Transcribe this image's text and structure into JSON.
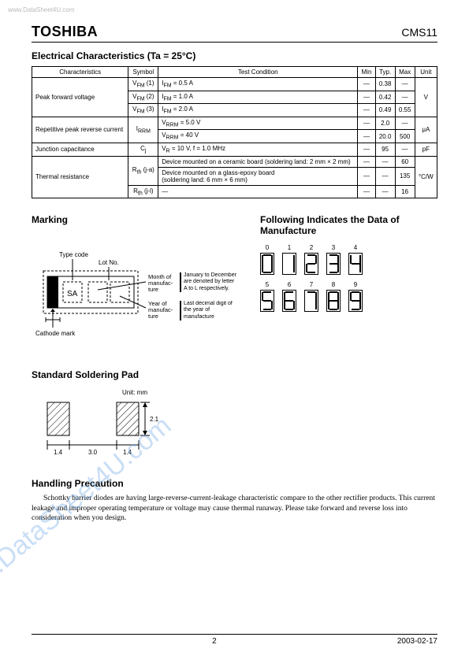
{
  "watermark_top": "www.DataSheet4U.com",
  "watermark_diag": "www.DataSheet4U.com",
  "header": {
    "logo": "TOSHIBA",
    "part": "CMS11"
  },
  "elec": {
    "title": "Electrical Characteristics (Ta = 25°C)",
    "head": [
      "Characteristics",
      "Symbol",
      "Test Condition",
      "Min",
      "Typ.",
      "Max",
      "Unit"
    ],
    "rows": [
      {
        "char": "Peak forward voltage",
        "char_rowspan": 3,
        "sym": "V_FM (1)",
        "cond": "I_FM = 0.5 A",
        "min": "—",
        "typ": "0.38",
        "max": "—",
        "unit": "V",
        "unit_rowspan": 3
      },
      {
        "sym": "V_FM (2)",
        "cond": "I_FM = 1.0 A",
        "min": "—",
        "typ": "0.42",
        "max": "—"
      },
      {
        "sym": "V_FM (3)",
        "cond": "I_FM = 2.0 A",
        "min": "—",
        "typ": "0.49",
        "max": "0.55"
      },
      {
        "char": "Repetitive peak reverse current",
        "char_rowspan": 2,
        "sym": "I_RRM",
        "sym_rowspan": 2,
        "cond": "V_RRM = 5.0 V",
        "min": "—",
        "typ": "2.0",
        "max": "—",
        "unit": "μA",
        "unit_rowspan": 2
      },
      {
        "cond": "V_RRM = 40 V",
        "min": "—",
        "typ": "20.0",
        "max": "500"
      },
      {
        "char": "Junction capacitance",
        "sym": "C_j",
        "cond": "V_R = 10 V, f = 1.0 MHz",
        "min": "—",
        "typ": "95",
        "max": "—",
        "unit": "pF"
      },
      {
        "char": "Thermal resistance",
        "char_rowspan": 3,
        "sym": "R_th (j-a)",
        "sym_rowspan": 2,
        "cond": "Device mounted on a ceramic board (soldering land: 2 mm × 2 mm)",
        "min": "—",
        "typ": "—",
        "max": "60",
        "unit": "°C/W",
        "unit_rowspan": 3
      },
      {
        "cond": "Device mounted on a glass-epoxy board\n(soldering land: 6 mm × 6 mm)",
        "min": "—",
        "typ": "—",
        "max": "135"
      },
      {
        "sym": "R_th (j-l)",
        "cond": "—",
        "min": "—",
        "typ": "—",
        "max": "16"
      }
    ]
  },
  "marking": {
    "title": "Marking",
    "labels": {
      "type_code": "Type code",
      "lot_no": "Lot No.",
      "cathode": "Cathode mark",
      "sa": "SA",
      "month": "Month of manufac-ture",
      "month_note": "January to December are denoted by letter A to L respectively.",
      "year": "Year of manufac-ture",
      "year_note": "Last decimal digit of the year of manufacture"
    }
  },
  "dom": {
    "title": "Following Indicates the Data of Manufacture",
    "row1": [
      "0",
      "1",
      "2",
      "3",
      "4"
    ],
    "row2": [
      "5",
      "6",
      "7",
      "8",
      "9"
    ]
  },
  "solder": {
    "title": "Standard Soldering Pad",
    "unit_label": "Unit: mm",
    "dims": {
      "pad_w": "1.4",
      "gap": "3.0",
      "pad_h": "2.1"
    }
  },
  "handling": {
    "title": "Handling Precaution",
    "text": "Schottky barrier diodes are having large-reverse-current-leakage characteristic compare to the other rectifier products. This current leakage and improper operating temperature or voltage may cause thermal runaway. Please take forward and reverse loss into consideration when you design."
  },
  "footer": {
    "page": "2",
    "date": "2003-02-17"
  }
}
